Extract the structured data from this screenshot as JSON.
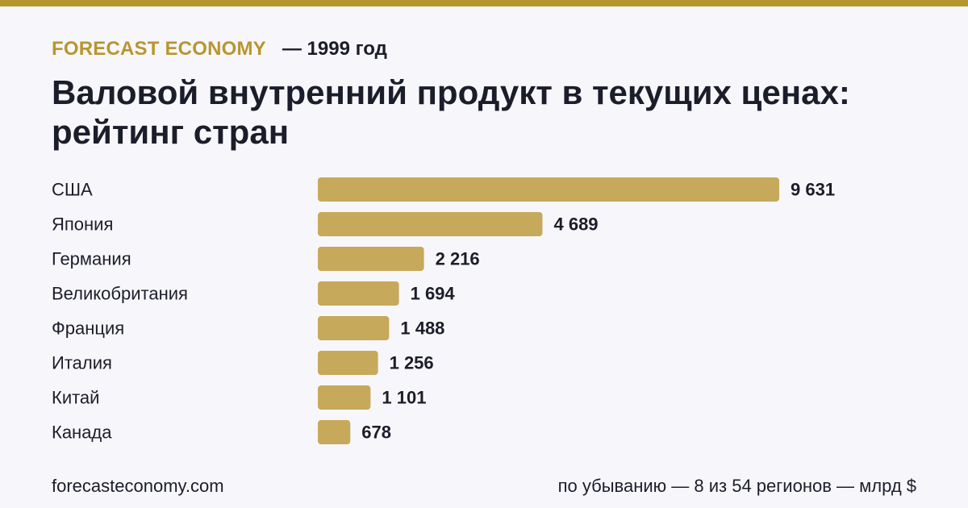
{
  "header": {
    "brand": "FORECAST ECONOMY",
    "year": "— 1999 год",
    "title": "Валовой внутренний продукт в текущих ценах: рейтинг стран"
  },
  "footer": {
    "site": "forecasteconomy.com",
    "note": "по убыванию — 8 из 54 регионов — млрд $"
  },
  "colors": {
    "accent": "#b8962f",
    "bar": "#c7a95b",
    "text": "#1c1d2b",
    "background": "#f7f7fb"
  },
  "chart_data": {
    "type": "bar",
    "orientation": "horizontal",
    "categories": [
      "США",
      "Япония",
      "Германия",
      "Великобритания",
      "Франция",
      "Италия",
      "Китай",
      "Канада"
    ],
    "values": [
      9631,
      4689,
      2216,
      1694,
      1488,
      1256,
      1101,
      678
    ],
    "value_labels": [
      "9 631",
      "4 689",
      "2 216",
      "1 694",
      "1 488",
      "1 256",
      "1 101",
      "678"
    ],
    "xlim": [
      0,
      9631
    ],
    "grid": false,
    "legend": "none"
  }
}
